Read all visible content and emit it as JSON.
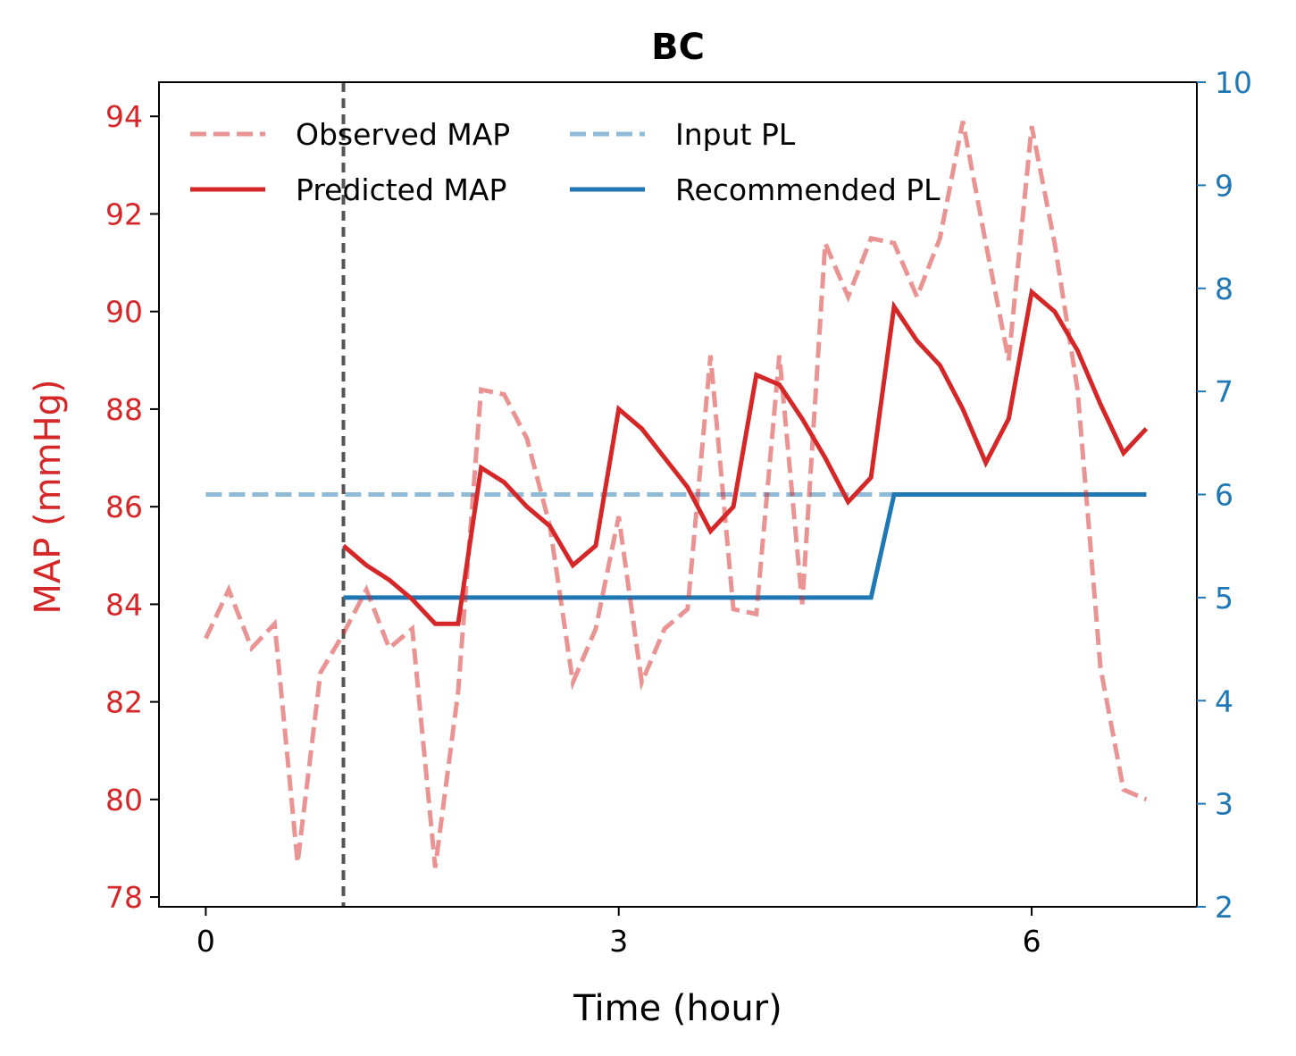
{
  "chart_data": {
    "type": "line",
    "title": "BC",
    "xlabel": "Time (hour)",
    "ylabel_left": "MAP (mmHg)",
    "ylabel_right": "",
    "xlim": [
      -0.34,
      7.2
    ],
    "ylim_left": [
      77.8,
      94.7
    ],
    "ylim_right": [
      2,
      10
    ],
    "x_ticks": [
      0,
      3,
      6
    ],
    "y_ticks_left": [
      78,
      80,
      82,
      84,
      86,
      88,
      90,
      92,
      94
    ],
    "y_ticks_right": [
      2,
      3,
      4,
      5,
      6,
      7,
      8,
      9,
      10
    ],
    "grid": false,
    "legend_position": "top-left",
    "legend_columns": 2,
    "vline": {
      "x": 1.0,
      "color": "#555555",
      "style": "dashed"
    },
    "colors": {
      "red": "#d62728",
      "blue": "#1f77b4",
      "left_axis": "#d62728",
      "right_axis": "#1f77b4"
    },
    "series": [
      {
        "name": "Observed MAP",
        "axis": "left",
        "style": "dashed",
        "color": "#d62728",
        "opacity": 0.5,
        "x": [
          0.0,
          0.167,
          0.333,
          0.5,
          0.667,
          0.833,
          1.0,
          1.167,
          1.333,
          1.5,
          1.667,
          1.833,
          2.0,
          2.167,
          2.333,
          2.5,
          2.667,
          2.833,
          3.0,
          3.167,
          3.333,
          3.5,
          3.667,
          3.833,
          4.0,
          4.167,
          4.333,
          4.5,
          4.667,
          4.833,
          5.0,
          5.167,
          5.333,
          5.5,
          5.667,
          5.833,
          6.0,
          6.167,
          6.333,
          6.5,
          6.667,
          6.833
        ],
        "y": [
          83.3,
          84.3,
          83.1,
          83.6,
          78.7,
          82.6,
          83.4,
          84.3,
          83.1,
          83.5,
          78.6,
          82.2,
          88.4,
          88.3,
          87.4,
          85.6,
          82.4,
          83.5,
          85.8,
          82.4,
          83.5,
          83.9,
          89.1,
          83.9,
          83.8,
          89.1,
          84.0,
          91.4,
          90.3,
          91.5,
          91.4,
          90.3,
          91.5,
          93.9,
          91.4,
          89.0,
          93.8,
          91.4,
          88.4,
          82.7,
          80.2,
          80.0
        ]
      },
      {
        "name": "Predicted MAP",
        "axis": "left",
        "style": "solid",
        "color": "#d62728",
        "opacity": 1,
        "x": [
          1.0,
          1.167,
          1.333,
          1.5,
          1.667,
          1.833,
          2.0,
          2.167,
          2.333,
          2.5,
          2.667,
          2.833,
          3.0,
          3.167,
          3.333,
          3.5,
          3.667,
          3.833,
          4.0,
          4.167,
          4.333,
          4.5,
          4.667,
          4.833,
          5.0,
          5.167,
          5.333,
          5.5,
          5.667,
          5.833,
          6.0,
          6.167,
          6.333,
          6.5,
          6.667,
          6.833
        ],
        "y": [
          85.2,
          84.8,
          84.5,
          84.1,
          83.6,
          83.6,
          86.8,
          86.5,
          86.0,
          85.6,
          84.8,
          85.2,
          88.0,
          87.6,
          87.0,
          86.4,
          85.5,
          86.0,
          88.7,
          88.5,
          87.8,
          87.0,
          86.1,
          86.6,
          90.1,
          89.4,
          88.9,
          88.0,
          86.9,
          87.8,
          90.4,
          90.0,
          89.2,
          88.1,
          87.1,
          87.6
        ]
      },
      {
        "name": "Input PL",
        "axis": "right",
        "style": "dashed",
        "color": "#1f77b4",
        "opacity": 0.5,
        "x": [
          0.0,
          6.833
        ],
        "y": [
          6,
          6
        ]
      },
      {
        "name": "Recommended PL",
        "axis": "right",
        "style": "solid",
        "color": "#1f77b4",
        "opacity": 1,
        "x": [
          1.0,
          4.833,
          5.0,
          6.833
        ],
        "y": [
          5,
          5,
          6,
          6
        ]
      }
    ]
  }
}
